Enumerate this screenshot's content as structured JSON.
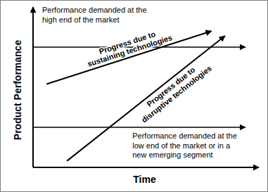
{
  "chart_data": {
    "type": "line",
    "x_label": "Time",
    "y_label": "Product Performance",
    "xlim": [
      0,
      100
    ],
    "ylim": [
      0,
      100
    ],
    "tick_labels": false,
    "series": [
      {
        "name": "Performance demanded at the\nhigh end of the market",
        "color": "#000000",
        "line_style": "solid",
        "x": [
          0,
          94
        ],
        "values": [
          75,
          75
        ]
      },
      {
        "name": "Progress due to\nsustaining technologies",
        "color": "#000000",
        "line_style": "solid",
        "x": [
          6,
          79
        ],
        "values": [
          52,
          85
        ]
      },
      {
        "name": "Progress due to\ndisruptive technologies",
        "color": "#000000",
        "line_style": "solid",
        "x": [
          15,
          85
        ],
        "values": [
          4,
          82
        ]
      },
      {
        "name": "Performance demanded at the\nlow end of the market or in a\nnew emerging segment",
        "color": "#000000",
        "line_style": "solid",
        "x": [
          0,
          94
        ],
        "values": [
          25,
          25
        ]
      }
    ]
  }
}
